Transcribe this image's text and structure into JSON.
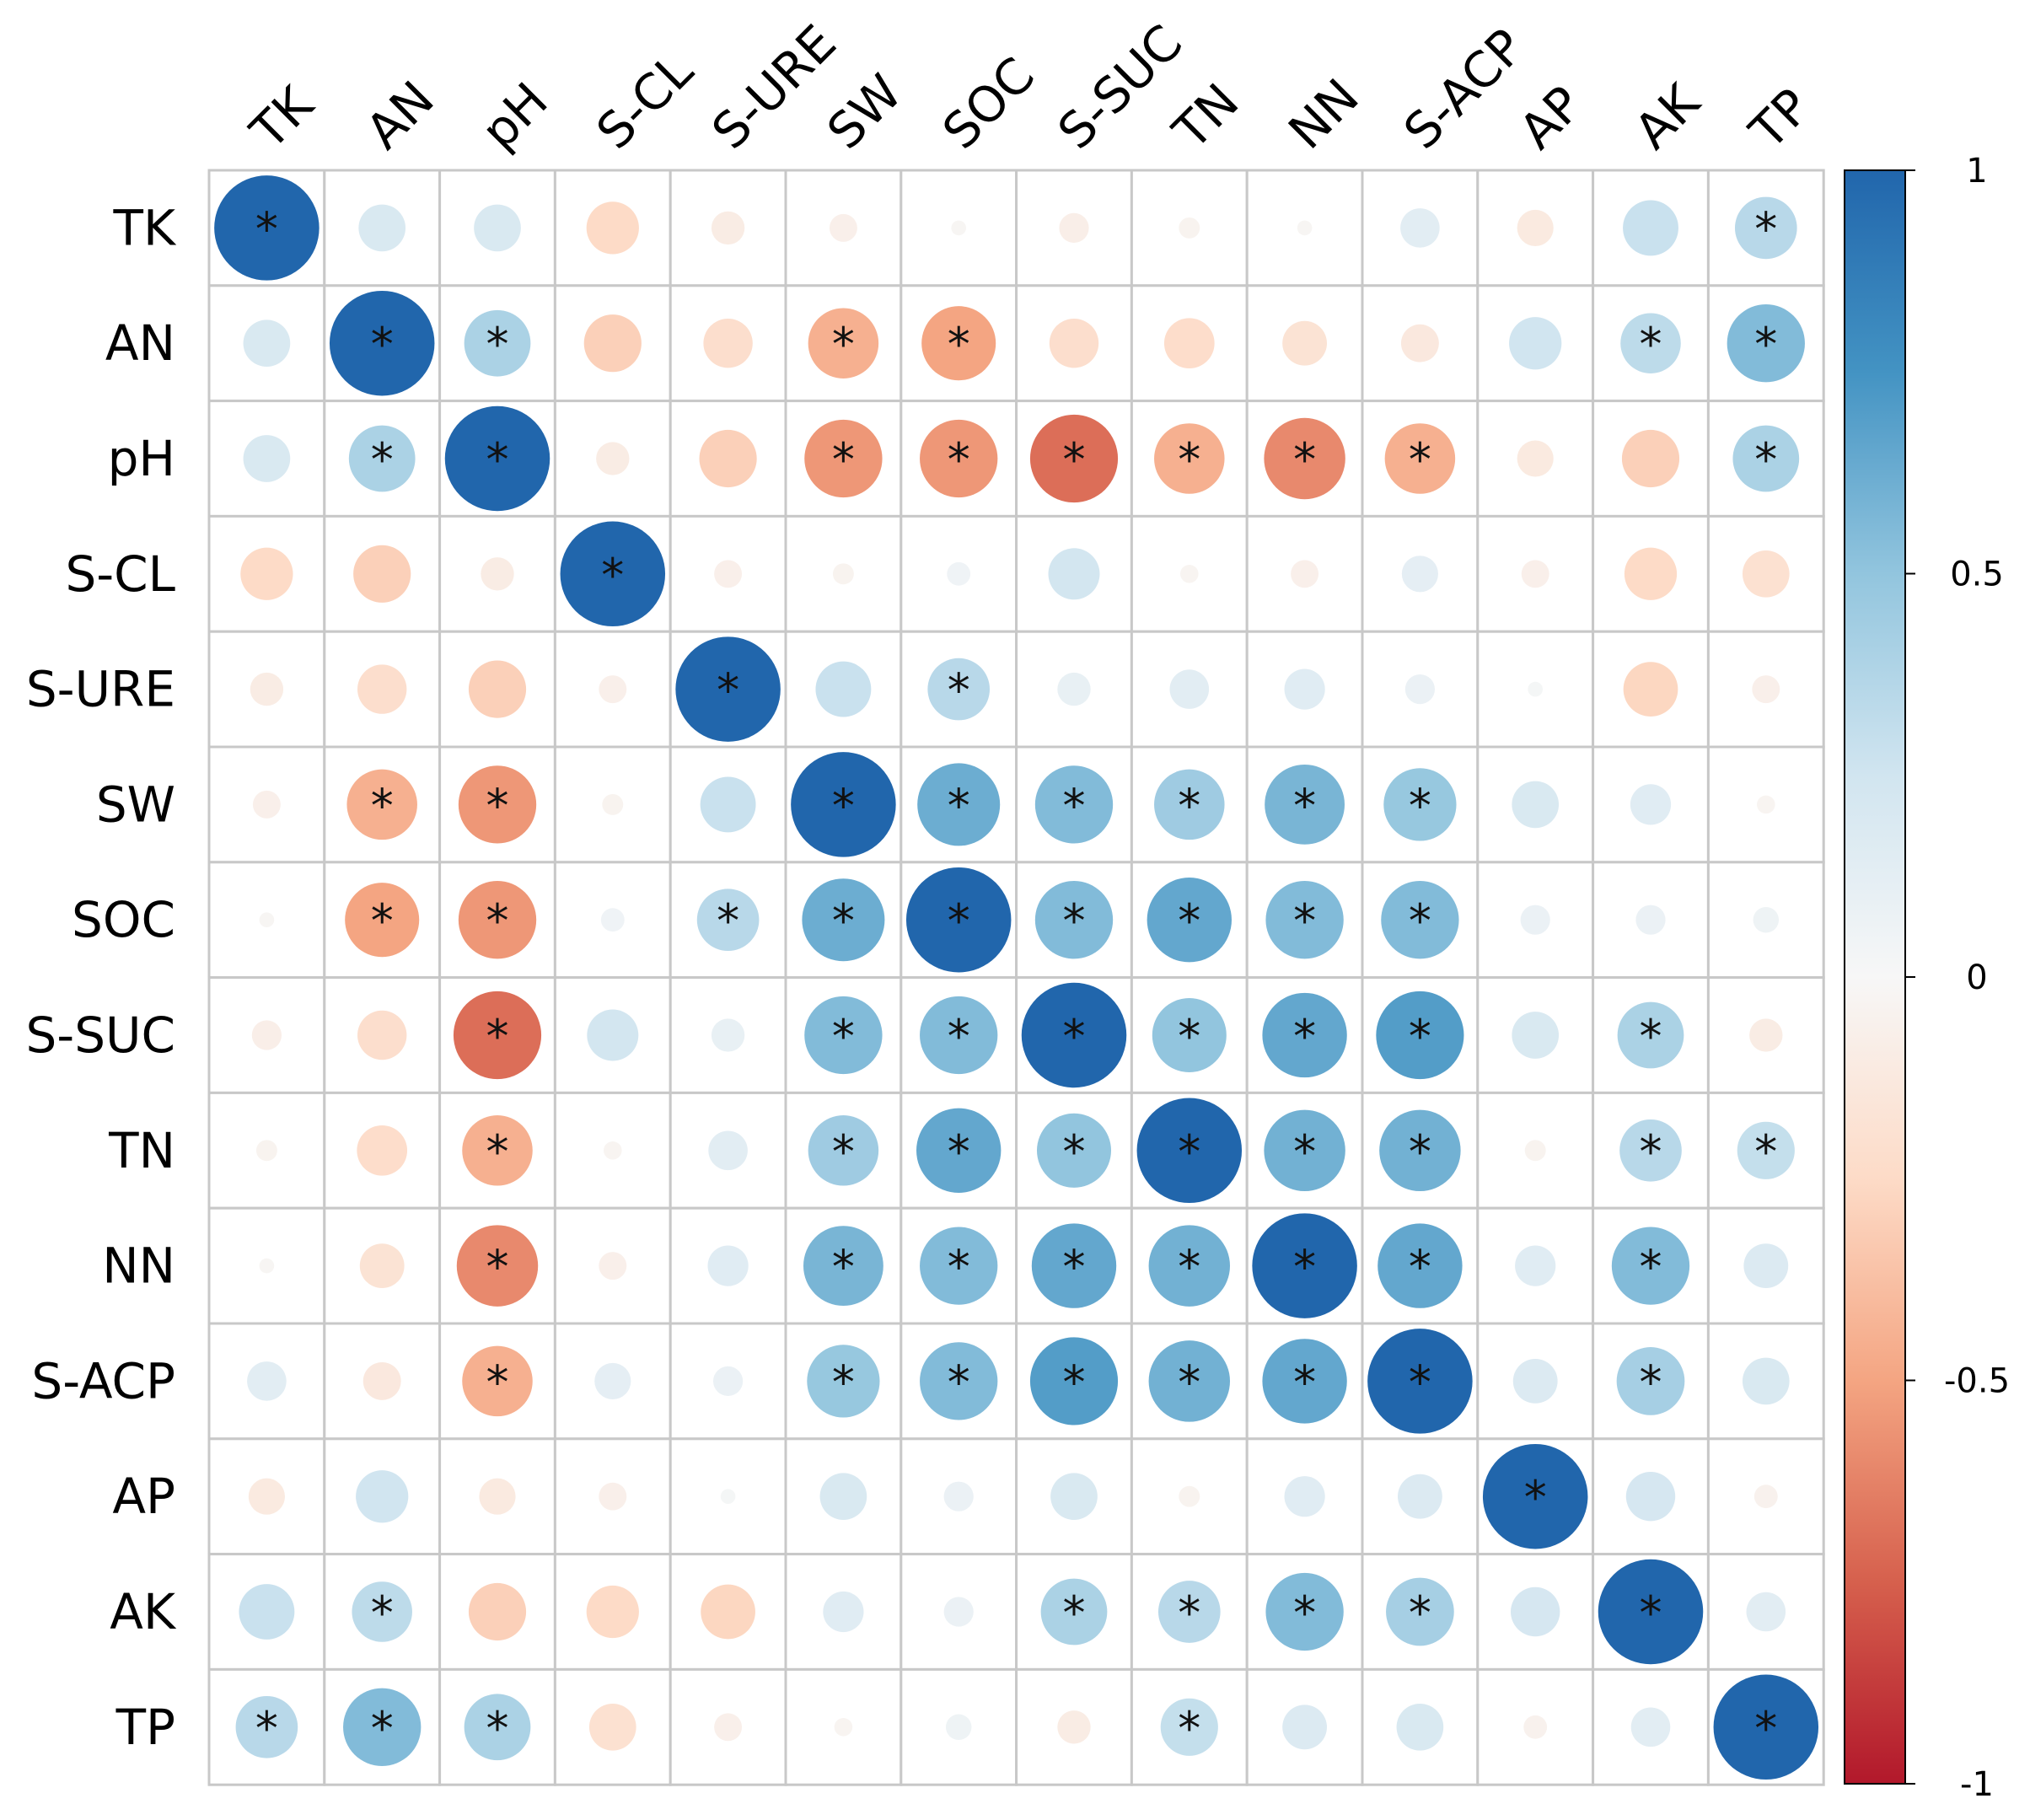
{
  "chart_data": {
    "type": "heatmap",
    "style": "correlation-circles",
    "variables": [
      "TK",
      "AN",
      "pH",
      "S-CL",
      "S-URE",
      "SW",
      "SOC",
      "S-SUC",
      "TN",
      "NN",
      "S-ACP",
      "AP",
      "AK",
      "TP"
    ],
    "matrix": [
      [
        1.0,
        0.2,
        0.2,
        -0.25,
        -0.1,
        -0.07,
        -0.02,
        -0.08,
        -0.04,
        -0.02,
        0.14,
        -0.12,
        0.28,
        0.35
      ],
      [
        0.2,
        1.0,
        0.4,
        -0.3,
        -0.22,
        -0.45,
        -0.5,
        -0.22,
        -0.23,
        -0.18,
        -0.13,
        0.25,
        0.33,
        0.55
      ],
      [
        0.2,
        0.4,
        1.0,
        -0.1,
        -0.3,
        -0.55,
        -0.55,
        -0.7,
        -0.45,
        -0.6,
        -0.45,
        -0.12,
        -0.3,
        0.4
      ],
      [
        -0.25,
        -0.3,
        -0.1,
        1.0,
        -0.07,
        -0.04,
        0.05,
        0.24,
        -0.03,
        -0.07,
        0.12,
        -0.07,
        -0.25,
        -0.2
      ],
      [
        -0.1,
        -0.22,
        -0.3,
        -0.07,
        1.0,
        0.28,
        0.35,
        0.1,
        0.14,
        0.15,
        0.08,
        0.02,
        -0.27,
        -0.07
      ],
      [
        -0.07,
        -0.45,
        -0.55,
        -0.04,
        0.28,
        1.0,
        0.62,
        0.55,
        0.45,
        0.58,
        0.48,
        0.2,
        0.15,
        -0.03
      ],
      [
        -0.02,
        -0.5,
        -0.55,
        0.05,
        0.35,
        0.62,
        1.0,
        0.55,
        0.65,
        0.55,
        0.55,
        0.08,
        0.08,
        0.06
      ],
      [
        -0.08,
        -0.22,
        -0.7,
        0.24,
        0.1,
        0.55,
        0.55,
        1.0,
        0.5,
        0.65,
        0.7,
        0.2,
        0.4,
        -0.1
      ],
      [
        -0.04,
        -0.23,
        -0.45,
        -0.03,
        0.14,
        0.45,
        0.65,
        0.5,
        1.0,
        0.6,
        0.6,
        -0.04,
        0.35,
        0.3
      ],
      [
        -0.02,
        -0.18,
        -0.6,
        -0.07,
        0.15,
        0.58,
        0.55,
        0.65,
        0.6,
        1.0,
        0.65,
        0.15,
        0.55,
        0.18
      ],
      [
        0.14,
        -0.13,
        -0.45,
        0.12,
        0.08,
        0.48,
        0.55,
        0.7,
        0.6,
        0.65,
        1.0,
        0.18,
        0.42,
        0.2
      ],
      [
        -0.12,
        0.25,
        -0.12,
        -0.07,
        0.02,
        0.2,
        0.08,
        0.2,
        -0.04,
        0.15,
        0.18,
        1.0,
        0.22,
        -0.05
      ],
      [
        0.28,
        0.33,
        -0.3,
        -0.25,
        -0.27,
        0.15,
        0.08,
        0.4,
        0.35,
        0.55,
        0.42,
        0.22,
        1.0,
        0.14
      ],
      [
        0.35,
        0.55,
        0.4,
        -0.2,
        -0.07,
        -0.03,
        0.06,
        -0.1,
        0.3,
        0.18,
        0.2,
        -0.05,
        0.14,
        1.0
      ]
    ],
    "significant": [
      [
        1,
        0,
        0,
        0,
        0,
        0,
        0,
        0,
        0,
        0,
        0,
        0,
        0,
        1
      ],
      [
        0,
        1,
        1,
        0,
        0,
        1,
        1,
        0,
        0,
        0,
        0,
        0,
        1,
        1
      ],
      [
        0,
        1,
        1,
        0,
        0,
        1,
        1,
        1,
        1,
        1,
        1,
        0,
        0,
        1
      ],
      [
        0,
        0,
        0,
        1,
        0,
        0,
        0,
        0,
        0,
        0,
        0,
        0,
        0,
        0
      ],
      [
        0,
        0,
        0,
        0,
        1,
        0,
        1,
        0,
        0,
        0,
        0,
        0,
        0,
        0
      ],
      [
        0,
        1,
        1,
        0,
        0,
        1,
        1,
        1,
        1,
        1,
        1,
        0,
        0,
        0
      ],
      [
        0,
        1,
        1,
        0,
        1,
        1,
        1,
        1,
        1,
        1,
        1,
        0,
        0,
        0
      ],
      [
        0,
        0,
        1,
        0,
        0,
        1,
        1,
        1,
        1,
        1,
        1,
        0,
        1,
        0
      ],
      [
        0,
        0,
        1,
        0,
        0,
        1,
        1,
        1,
        1,
        1,
        1,
        0,
        1,
        1
      ],
      [
        0,
        0,
        1,
        0,
        0,
        1,
        1,
        1,
        1,
        1,
        1,
        0,
        1,
        0
      ],
      [
        0,
        0,
        1,
        0,
        0,
        1,
        1,
        1,
        1,
        1,
        1,
        0,
        1,
        0
      ],
      [
        0,
        0,
        0,
        0,
        0,
        0,
        0,
        0,
        0,
        0,
        0,
        1,
        0,
        0
      ],
      [
        0,
        1,
        0,
        0,
        0,
        0,
        0,
        1,
        1,
        1,
        1,
        0,
        1,
        0
      ],
      [
        1,
        1,
        1,
        0,
        0,
        0,
        0,
        0,
        1,
        0,
        0,
        0,
        0,
        1
      ]
    ],
    "significance_marker": "*",
    "colorbar": {
      "range": [
        -1,
        1
      ],
      "ticks": [
        1,
        0.5,
        0,
        -0.5,
        -1
      ],
      "tick_labels": [
        "1",
        "0.5",
        "0",
        "-0.5",
        "-1"
      ],
      "colors": [
        "#b2182b",
        "#d6604d",
        "#f4a582",
        "#fddbc7",
        "#f7f7f7",
        "#d1e5f0",
        "#92c5de",
        "#4393c3",
        "#2166ac"
      ]
    },
    "title": "",
    "xlabel": "",
    "ylabel": ""
  }
}
